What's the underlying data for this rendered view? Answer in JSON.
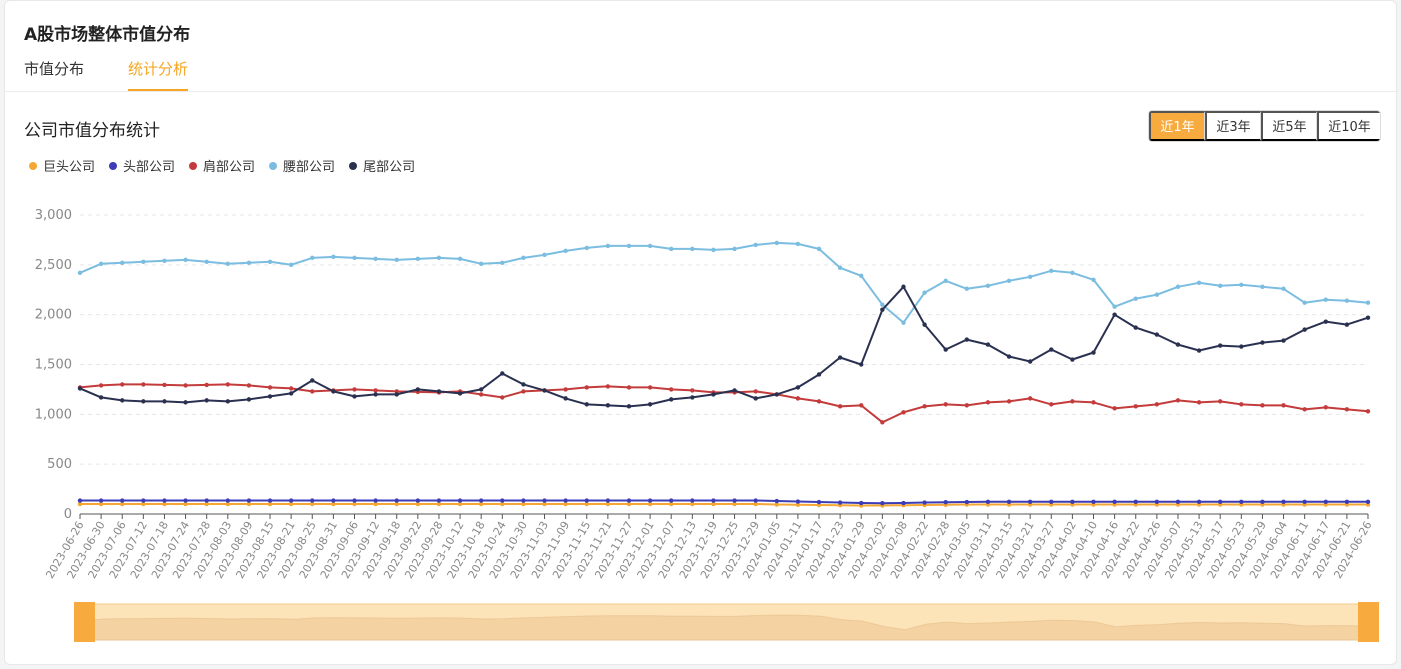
{
  "header": {
    "title": "A股市场整体市值分布"
  },
  "tabs": [
    {
      "label": "市值分布"
    },
    {
      "label": "统计分析"
    }
  ],
  "section": {
    "title": "公司市值分布统计"
  },
  "range_buttons": [
    {
      "label": "近1年"
    },
    {
      "label": "近3年"
    },
    {
      "label": "近5年"
    },
    {
      "label": "近10年"
    }
  ],
  "active_range": "近1年",
  "colors": {
    "accent": "#f7ab3f",
    "giant": "#f5a733",
    "head": "#3c3cb4",
    "shoulder": "#c33b3b",
    "waist": "#7bbde0",
    "tail": "#2a3150"
  },
  "chart_data": {
    "type": "line",
    "yticks": [
      "0",
      "500",
      "1,000",
      "1,500",
      "2,000",
      "2,500",
      "3,000"
    ],
    "ylim": [
      0,
      3000
    ],
    "grid": true,
    "legend_position": "top-left",
    "x_ticks": [
      "2023-06-26",
      "2023-06-30",
      "2023-07-06",
      "2023-07-12",
      "2023-07-18",
      "2023-07-24",
      "2023-07-28",
      "2023-08-03",
      "2023-08-09",
      "2023-08-15",
      "2023-08-21",
      "2023-08-25",
      "2023-08-31",
      "2023-09-06",
      "2023-09-12",
      "2023-09-18",
      "2023-09-22",
      "2023-09-28",
      "2023-10-12",
      "2023-10-18",
      "2023-10-24",
      "2023-10-30",
      "2023-11-03",
      "2023-11-09",
      "2023-11-15",
      "2023-11-21",
      "2023-11-27",
      "2023-12-01",
      "2023-12-07",
      "2023-12-13",
      "2023-12-19",
      "2023-12-25",
      "2023-12-29",
      "2024-01-05",
      "2024-01-11",
      "2024-01-17",
      "2024-01-23",
      "2024-01-29",
      "2024-02-02",
      "2024-02-08",
      "2024-02-22",
      "2024-02-28",
      "2024-03-05",
      "2024-03-11",
      "2024-03-15",
      "2024-03-21",
      "2024-03-27",
      "2024-04-02",
      "2024-04-10",
      "2024-04-16",
      "2024-04-22",
      "2024-04-26",
      "2024-05-07",
      "2024-05-13",
      "2024-05-17",
      "2024-05-23",
      "2024-05-29",
      "2024-06-04",
      "2024-06-11",
      "2024-06-17",
      "2024-06-21",
      "2024-06-26"
    ],
    "series": [
      {
        "name": "巨头公司",
        "color": "#f5a733",
        "values": [
          100,
          100,
          100,
          100,
          100,
          100,
          100,
          100,
          100,
          100,
          100,
          100,
          100,
          100,
          100,
          100,
          100,
          100,
          100,
          100,
          100,
          100,
          100,
          100,
          100,
          100,
          100,
          100,
          100,
          100,
          100,
          100,
          100,
          95,
          92,
          90,
          88,
          85,
          85,
          88,
          90,
          92,
          95,
          95,
          95,
          95,
          95,
          95,
          95,
          95,
          95,
          95,
          95,
          95,
          95,
          95,
          95,
          95,
          95,
          95,
          95,
          95
        ]
      },
      {
        "name": "头部公司",
        "color": "#3c3cb4",
        "values": [
          135,
          135,
          135,
          135,
          135,
          135,
          135,
          135,
          135,
          135,
          135,
          135,
          135,
          135,
          135,
          135,
          135,
          135,
          135,
          135,
          135,
          135,
          135,
          135,
          135,
          135,
          135,
          135,
          135,
          135,
          135,
          135,
          135,
          130,
          125,
          120,
          115,
          110,
          108,
          110,
          115,
          118,
          120,
          122,
          122,
          122,
          122,
          122,
          122,
          122,
          122,
          122,
          122,
          122,
          122,
          122,
          122,
          122,
          122,
          122,
          122,
          122
        ]
      },
      {
        "name": "肩部公司",
        "color": "#c33b3b",
        "values": [
          1270,
          1290,
          1300,
          1300,
          1295,
          1290,
          1295,
          1300,
          1290,
          1270,
          1260,
          1230,
          1240,
          1250,
          1240,
          1230,
          1225,
          1220,
          1230,
          1200,
          1170,
          1230,
          1240,
          1250,
          1270,
          1280,
          1270,
          1270,
          1250,
          1240,
          1220,
          1220,
          1230,
          1200,
          1160,
          1130,
          1080,
          1090,
          920,
          1020,
          1080,
          1100,
          1090,
          1120,
          1130,
          1160,
          1100,
          1130,
          1120,
          1060,
          1080,
          1100,
          1140,
          1120,
          1130,
          1100,
          1090,
          1090,
          1050,
          1070,
          1050,
          1030
        ]
      },
      {
        "name": "腰部公司",
        "color": "#7bbde0",
        "values": [
          2420,
          2510,
          2520,
          2530,
          2540,
          2550,
          2530,
          2510,
          2520,
          2530,
          2500,
          2570,
          2580,
          2570,
          2560,
          2550,
          2560,
          2570,
          2560,
          2510,
          2520,
          2570,
          2600,
          2640,
          2670,
          2690,
          2690,
          2690,
          2660,
          2660,
          2650,
          2660,
          2700,
          2720,
          2710,
          2660,
          2470,
          2390,
          2100,
          1920,
          2220,
          2340,
          2260,
          2290,
          2340,
          2380,
          2440,
          2420,
          2350,
          2080,
          2160,
          2200,
          2280,
          2320,
          2290,
          2300,
          2280,
          2260,
          2120,
          2150,
          2140,
          2120
        ]
      },
      {
        "name": "尾部公司",
        "color": "#2a3150",
        "values": [
          1260,
          1170,
          1140,
          1130,
          1130,
          1120,
          1140,
          1130,
          1150,
          1180,
          1210,
          1340,
          1230,
          1180,
          1200,
          1200,
          1250,
          1230,
          1210,
          1250,
          1410,
          1300,
          1240,
          1160,
          1100,
          1090,
          1080,
          1100,
          1150,
          1170,
          1200,
          1240,
          1160,
          1200,
          1270,
          1400,
          1570,
          1500,
          2050,
          2280,
          1900,
          1650,
          1750,
          1700,
          1580,
          1530,
          1650,
          1550,
          1620,
          2000,
          1870,
          1800,
          1700,
          1640,
          1690,
          1680,
          1720,
          1740,
          1850,
          1930,
          1900,
          1970
        ]
      }
    ]
  }
}
